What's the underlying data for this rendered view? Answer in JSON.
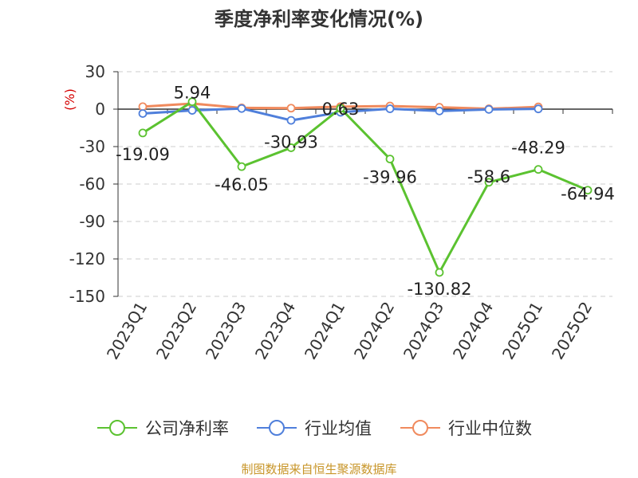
{
  "chart_data": {
    "type": "line",
    "title": "季度净利率变化情况(%)",
    "unit_label": "(%)",
    "categories": [
      "2023Q1",
      "2023Q2",
      "2023Q3",
      "2023Q4",
      "2024Q1",
      "2024Q2",
      "2024Q3",
      "2024Q4",
      "2025Q1",
      "2025Q2"
    ],
    "ylim": [
      -150,
      30
    ],
    "yticks": [
      30,
      0,
      -30,
      -60,
      -90,
      -120,
      -150
    ],
    "grid": true,
    "legend_position": "bottom",
    "series": [
      {
        "name": "公司净利率",
        "color": "#5bc230",
        "values": [
          -19.09,
          5.94,
          -46.05,
          -30.93,
          0.63,
          -39.96,
          -130.82,
          -58.6,
          -48.29,
          -64.94
        ],
        "labels": [
          "-19.09",
          "5.94",
          "-46.05",
          "-30.93",
          "0.63",
          "-39.96",
          "-130.82",
          "-58.6",
          "-48.29",
          "-64.94"
        ]
      },
      {
        "name": "行业均值",
        "color": "#4f7fdb",
        "values": [
          -3.5,
          -1.0,
          0.5,
          -9.0,
          -2.5,
          0.3,
          -1.5,
          -0.2,
          0.2,
          null
        ]
      },
      {
        "name": "行业中位数",
        "color": "#f08a5d",
        "values": [
          2.0,
          4.5,
          1.0,
          0.8,
          2.0,
          2.5,
          1.5,
          0.3,
          1.8,
          null
        ]
      }
    ]
  },
  "source_text": "制图数据来自恒生聚源数据库"
}
